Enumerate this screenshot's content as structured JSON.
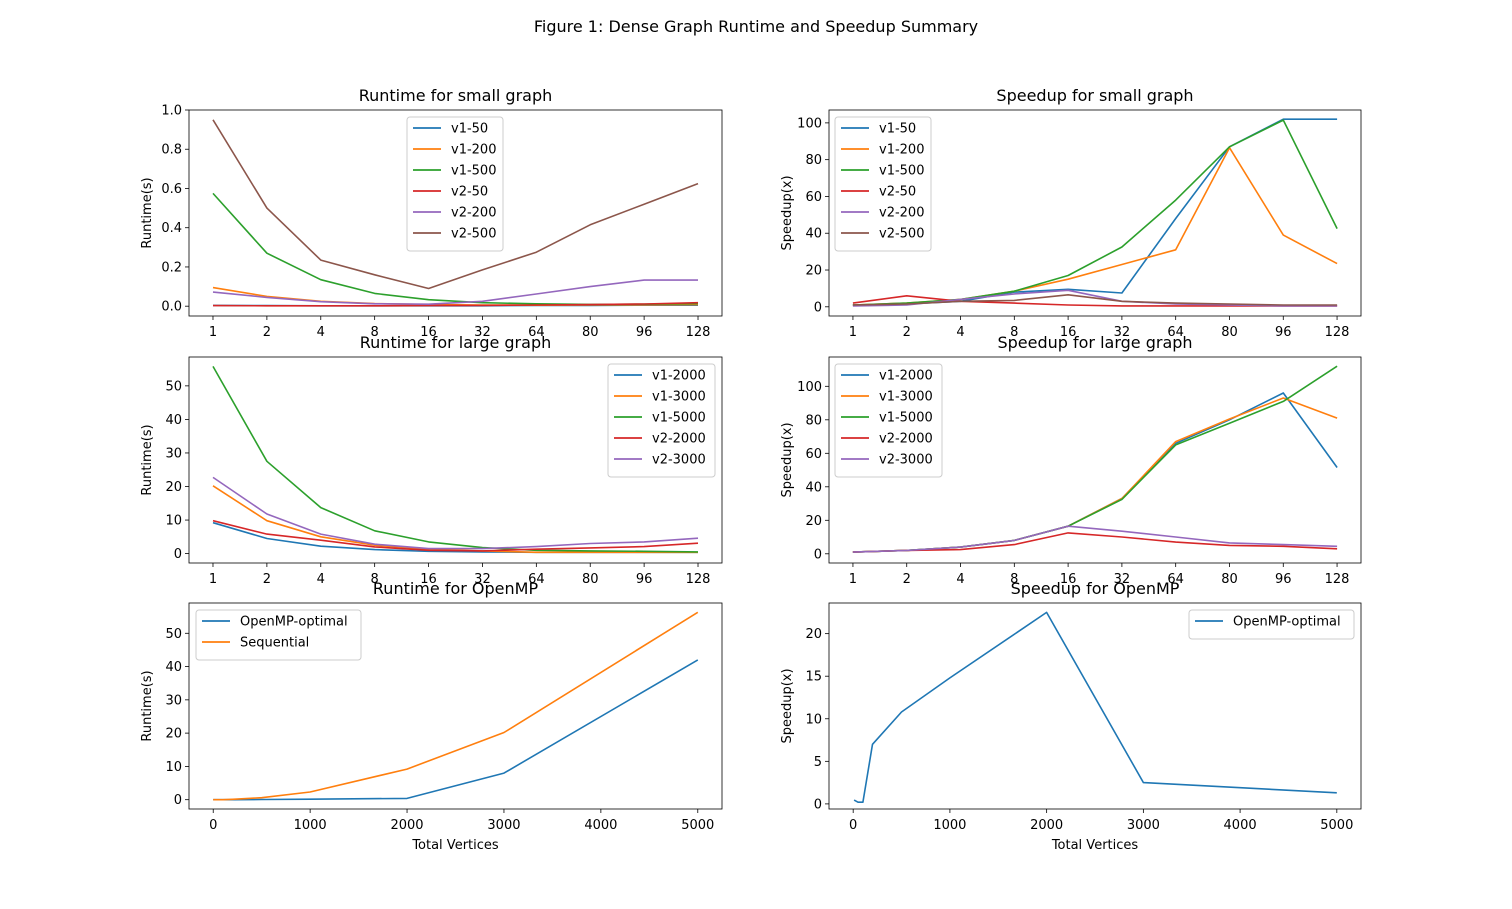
{
  "figure_title": "Figure 1: Dense Graph Runtime and Speedup Summary",
  "colors": {
    "blue": "#1f77b4",
    "orange": "#ff7f0e",
    "green": "#2ca02c",
    "red": "#d62728",
    "purple": "#9467bd",
    "brown": "#8c564b"
  },
  "chart_data": [
    {
      "id": "runtime-small",
      "type": "line",
      "title": "Runtime for small graph",
      "xlabel": "",
      "ylabel": "Runtime(s)",
      "x_scale": "categorical",
      "categories": [
        "1",
        "2",
        "4",
        "8",
        "16",
        "32",
        "64",
        "80",
        "96",
        "128"
      ],
      "ylim": [
        -0.05,
        1.0
      ],
      "yticks": [
        0.0,
        0.2,
        0.4,
        0.6,
        0.8,
        1.0
      ],
      "ytick_labels": [
        "0.0",
        "0.2",
        "0.4",
        "0.6",
        "0.8",
        "1.0"
      ],
      "legend_position": "top-center",
      "series": [
        {
          "name": "v1-50",
          "color": "#1f77b4",
          "values": [
            0.004,
            0.003,
            0.002,
            0.002,
            0.002,
            0.002,
            0.004,
            0.004,
            0.005,
            0.005
          ]
        },
        {
          "name": "v1-200",
          "color": "#ff7f0e",
          "values": [
            0.095,
            0.05,
            0.025,
            0.013,
            0.008,
            0.006,
            0.005,
            0.006,
            0.007,
            0.008
          ]
        },
        {
          "name": "v1-500",
          "color": "#2ca02c",
          "values": [
            0.575,
            0.27,
            0.135,
            0.065,
            0.033,
            0.018,
            0.012,
            0.009,
            0.01,
            0.013
          ]
        },
        {
          "name": "v2-50",
          "color": "#d62728",
          "values": [
            0.003,
            0.002,
            0.002,
            0.002,
            0.003,
            0.004,
            0.006,
            0.008,
            0.011,
            0.018
          ]
        },
        {
          "name": "v2-200",
          "color": "#9467bd",
          "values": [
            0.072,
            0.045,
            0.023,
            0.012,
            0.01,
            0.025,
            0.062,
            0.1,
            0.133,
            0.133
          ]
        },
        {
          "name": "v2-500",
          "color": "#8c564b",
          "values": [
            0.95,
            0.5,
            0.235,
            0.16,
            0.09,
            0.185,
            0.275,
            0.415,
            0.52,
            0.625
          ]
        }
      ]
    },
    {
      "id": "speedup-small",
      "type": "line",
      "title": "Speedup for small graph",
      "xlabel": "",
      "ylabel": "Speedup(x)",
      "x_scale": "categorical",
      "categories": [
        "1",
        "2",
        "4",
        "8",
        "16",
        "32",
        "64",
        "80",
        "96",
        "128"
      ],
      "ylim": [
        -5,
        107
      ],
      "yticks": [
        0,
        20,
        40,
        60,
        80,
        100
      ],
      "ytick_labels": [
        "0",
        "20",
        "40",
        "60",
        "80",
        "100"
      ],
      "legend_position": "upper-left",
      "series": [
        {
          "name": "v1-50",
          "color": "#1f77b4",
          "values": [
            1,
            1.5,
            3,
            8,
            9.5,
            7.5,
            48,
            87,
            102,
            102
          ]
        },
        {
          "name": "v1-200",
          "color": "#ff7f0e",
          "values": [
            1,
            2,
            4,
            8.5,
            15,
            23,
            31,
            86.5,
            39,
            23.5
          ]
        },
        {
          "name": "v1-500",
          "color": "#2ca02c",
          "values": [
            1,
            2,
            4,
            8.5,
            17,
            32.5,
            58,
            87,
            101.5,
            42.5
          ]
        },
        {
          "name": "v2-50",
          "color": "#d62728",
          "values": [
            2,
            6,
            3,
            2,
            1,
            0.5,
            0.5,
            0.5,
            0.5,
            0.5
          ]
        },
        {
          "name": "v2-200",
          "color": "#9467bd",
          "values": [
            0.5,
            1,
            4,
            7,
            9,
            3,
            1.5,
            1,
            0.5,
            0.5
          ]
        },
        {
          "name": "v2-500",
          "color": "#8c564b",
          "values": [
            1,
            1.5,
            3,
            3.5,
            6.5,
            3,
            2,
            1.5,
            1,
            1
          ]
        }
      ]
    },
    {
      "id": "runtime-large",
      "type": "line",
      "title": "Runtime for large graph",
      "xlabel": "",
      "ylabel": "Runtime(s)",
      "x_scale": "categorical",
      "categories": [
        "1",
        "2",
        "4",
        "8",
        "16",
        "32",
        "64",
        "80",
        "96",
        "128"
      ],
      "ylim": [
        -2.8,
        58.6
      ],
      "yticks": [
        0,
        10,
        20,
        30,
        40,
        50
      ],
      "ytick_labels": [
        "0",
        "10",
        "20",
        "30",
        "40",
        "50"
      ],
      "legend_position": "upper-right",
      "series": [
        {
          "name": "v1-2000",
          "color": "#1f77b4",
          "values": [
            9.2,
            4.5,
            2.2,
            1.2,
            0.7,
            0.5,
            0.4,
            0.4,
            0.4,
            0.4
          ]
        },
        {
          "name": "v1-3000",
          "color": "#ff7f0e",
          "values": [
            20.2,
            9.8,
            5,
            2.5,
            1.3,
            0.8,
            0.4,
            0.4,
            0.4,
            0.4
          ]
        },
        {
          "name": "v1-5000",
          "color": "#2ca02c",
          "values": [
            55.8,
            27.5,
            13.7,
            6.8,
            3.5,
            1.8,
            1,
            0.8,
            0.7,
            0.5
          ]
        },
        {
          "name": "v2-2000",
          "color": "#d62728",
          "values": [
            9.8,
            5.8,
            4,
            2,
            1,
            0.8,
            1.3,
            1.7,
            2.1,
            3.1
          ]
        },
        {
          "name": "v2-3000",
          "color": "#9467bd",
          "values": [
            22.7,
            11.8,
            5.8,
            2.8,
            1.5,
            1.5,
            2.1,
            3,
            3.5,
            4.6
          ]
        }
      ]
    },
    {
      "id": "speedup-large",
      "type": "line",
      "title": "Speedup for large graph",
      "xlabel": "",
      "ylabel": "Speedup(x)",
      "x_scale": "categorical",
      "categories": [
        "1",
        "2",
        "4",
        "8",
        "16",
        "32",
        "64",
        "80",
        "96",
        "128"
      ],
      "ylim": [
        -5.5,
        117.5
      ],
      "yticks": [
        0,
        20,
        40,
        60,
        80,
        100
      ],
      "ytick_labels": [
        "0",
        "20",
        "40",
        "60",
        "80",
        "100"
      ],
      "legend_position": "upper-left",
      "series": [
        {
          "name": "v1-2000",
          "color": "#1f77b4",
          "values": [
            1,
            2,
            4,
            8,
            16.5,
            33,
            66,
            80,
            96,
            51.5
          ]
        },
        {
          "name": "v1-3000",
          "color": "#ff7f0e",
          "values": [
            1,
            2,
            4,
            8,
            16.5,
            33,
            67,
            80.5,
            93,
            81
          ]
        },
        {
          "name": "v1-5000",
          "color": "#2ca02c",
          "values": [
            1,
            2,
            4,
            8,
            16.5,
            32.5,
            65,
            78,
            91,
            112
          ]
        },
        {
          "name": "v2-2000",
          "color": "#d62728",
          "values": [
            1,
            2,
            2.5,
            5.5,
            12.5,
            10,
            7,
            5,
            4.5,
            3
          ]
        },
        {
          "name": "v2-3000",
          "color": "#9467bd",
          "values": [
            1,
            2,
            4,
            8,
            16.5,
            13.5,
            10,
            6.5,
            5.5,
            4.5
          ]
        }
      ]
    },
    {
      "id": "runtime-openmp",
      "type": "line",
      "title": "Runtime for OpenMP",
      "xlabel": "Total Vertices",
      "ylabel": "Runtime(s)",
      "x_scale": "linear",
      "xlim": [
        -250,
        5250
      ],
      "xticks": [
        0,
        1000,
        2000,
        3000,
        4000,
        5000
      ],
      "xtick_labels": [
        "0",
        "1000",
        "2000",
        "3000",
        "4000",
        "5000"
      ],
      "ylim": [
        -2.8,
        59.1
      ],
      "yticks": [
        0,
        10,
        20,
        30,
        40,
        50
      ],
      "ytick_labels": [
        "0",
        "10",
        "20",
        "30",
        "40",
        "50"
      ],
      "legend_position": "upper-left",
      "series": [
        {
          "name": "OpenMP-optimal",
          "color": "#1f77b4",
          "x": [
            0,
            50,
            100,
            200,
            500,
            1000,
            2000,
            3000,
            5000
          ],
          "values": [
            0,
            0,
            0,
            0,
            0.05,
            0.15,
            0.4,
            8,
            42
          ]
        },
        {
          "name": "Sequential",
          "color": "#ff7f0e",
          "x": [
            0,
            50,
            100,
            200,
            500,
            1000,
            2000,
            3000,
            5000
          ],
          "values": [
            0,
            0,
            0,
            0.1,
            0.6,
            2.3,
            9.2,
            20.2,
            56.3
          ]
        }
      ]
    },
    {
      "id": "speedup-openmp",
      "type": "line",
      "title": "Speedup for OpenMP",
      "xlabel": "Total Vertices",
      "ylabel": "Speedup(x)",
      "x_scale": "linear",
      "xlim": [
        -250,
        5250
      ],
      "xticks": [
        0,
        1000,
        2000,
        3000,
        4000,
        5000
      ],
      "xtick_labels": [
        "0",
        "1000",
        "2000",
        "3000",
        "4000",
        "5000"
      ],
      "ylim": [
        -0.6,
        23.6
      ],
      "yticks": [
        0,
        5,
        10,
        15,
        20
      ],
      "ytick_labels": [
        "0",
        "5",
        "10",
        "15",
        "20"
      ],
      "legend_position": "upper-right",
      "series": [
        {
          "name": "OpenMP-optimal",
          "color": "#1f77b4",
          "x": [
            10,
            50,
            100,
            200,
            500,
            1000,
            2000,
            3000,
            5000
          ],
          "values": [
            0.45,
            0.2,
            0.2,
            7,
            10.8,
            14.8,
            22.5,
            2.5,
            1.3
          ]
        }
      ]
    }
  ]
}
